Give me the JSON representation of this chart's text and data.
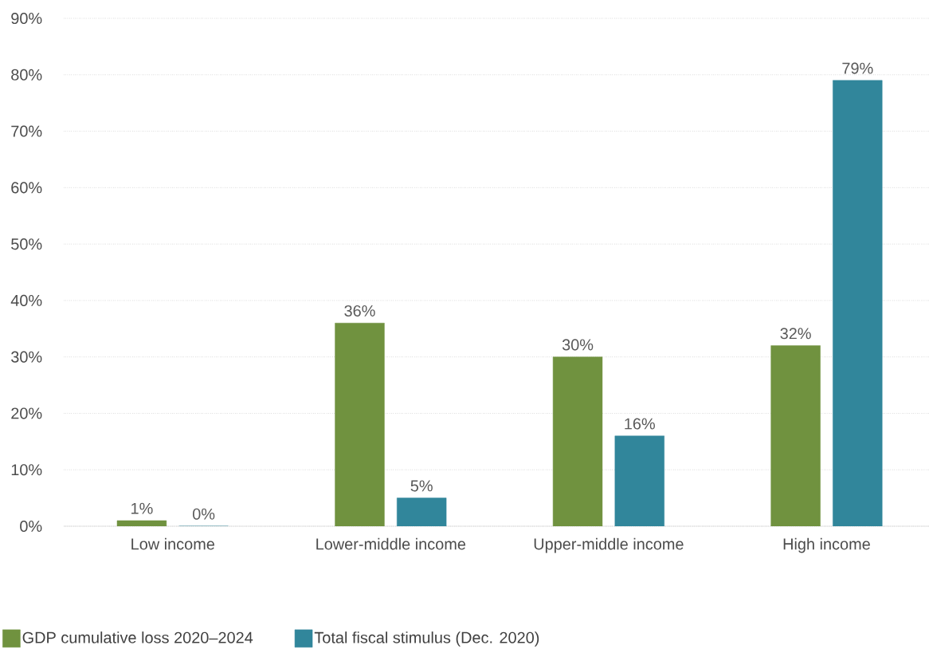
{
  "chart_data": {
    "type": "bar",
    "categories": [
      "Low income",
      "Lower-middle income",
      "Upper-middle income",
      "High income"
    ],
    "series": [
      {
        "name": "GDP cumulative loss 2020–2024",
        "color": "#70923f",
        "values": [
          1,
          36,
          30,
          32
        ],
        "value_labels": [
          "1%",
          "36%",
          "30%",
          "32%"
        ]
      },
      {
        "name": "Total fiscal stimulus (Dec. 2020)",
        "color": "#31869b",
        "values": [
          0,
          5,
          16,
          79
        ],
        "value_labels": [
          "0%",
          "5%",
          "16%",
          "79%"
        ]
      }
    ],
    "ylim": [
      0,
      90
    ],
    "yticks": [
      {
        "value": 0,
        "label": "0%"
      },
      {
        "value": 10,
        "label": "10%"
      },
      {
        "value": 20,
        "label": "20%"
      },
      {
        "value": 30,
        "label": "30%"
      },
      {
        "value": 40,
        "label": "40%"
      },
      {
        "value": 50,
        "label": "50%"
      },
      {
        "value": 60,
        "label": "60%"
      },
      {
        "value": 70,
        "label": "70%"
      },
      {
        "value": 80,
        "label": "80%"
      },
      {
        "value": 90,
        "label": "90%"
      }
    ],
    "grid": "y",
    "legend": "bottom left"
  }
}
